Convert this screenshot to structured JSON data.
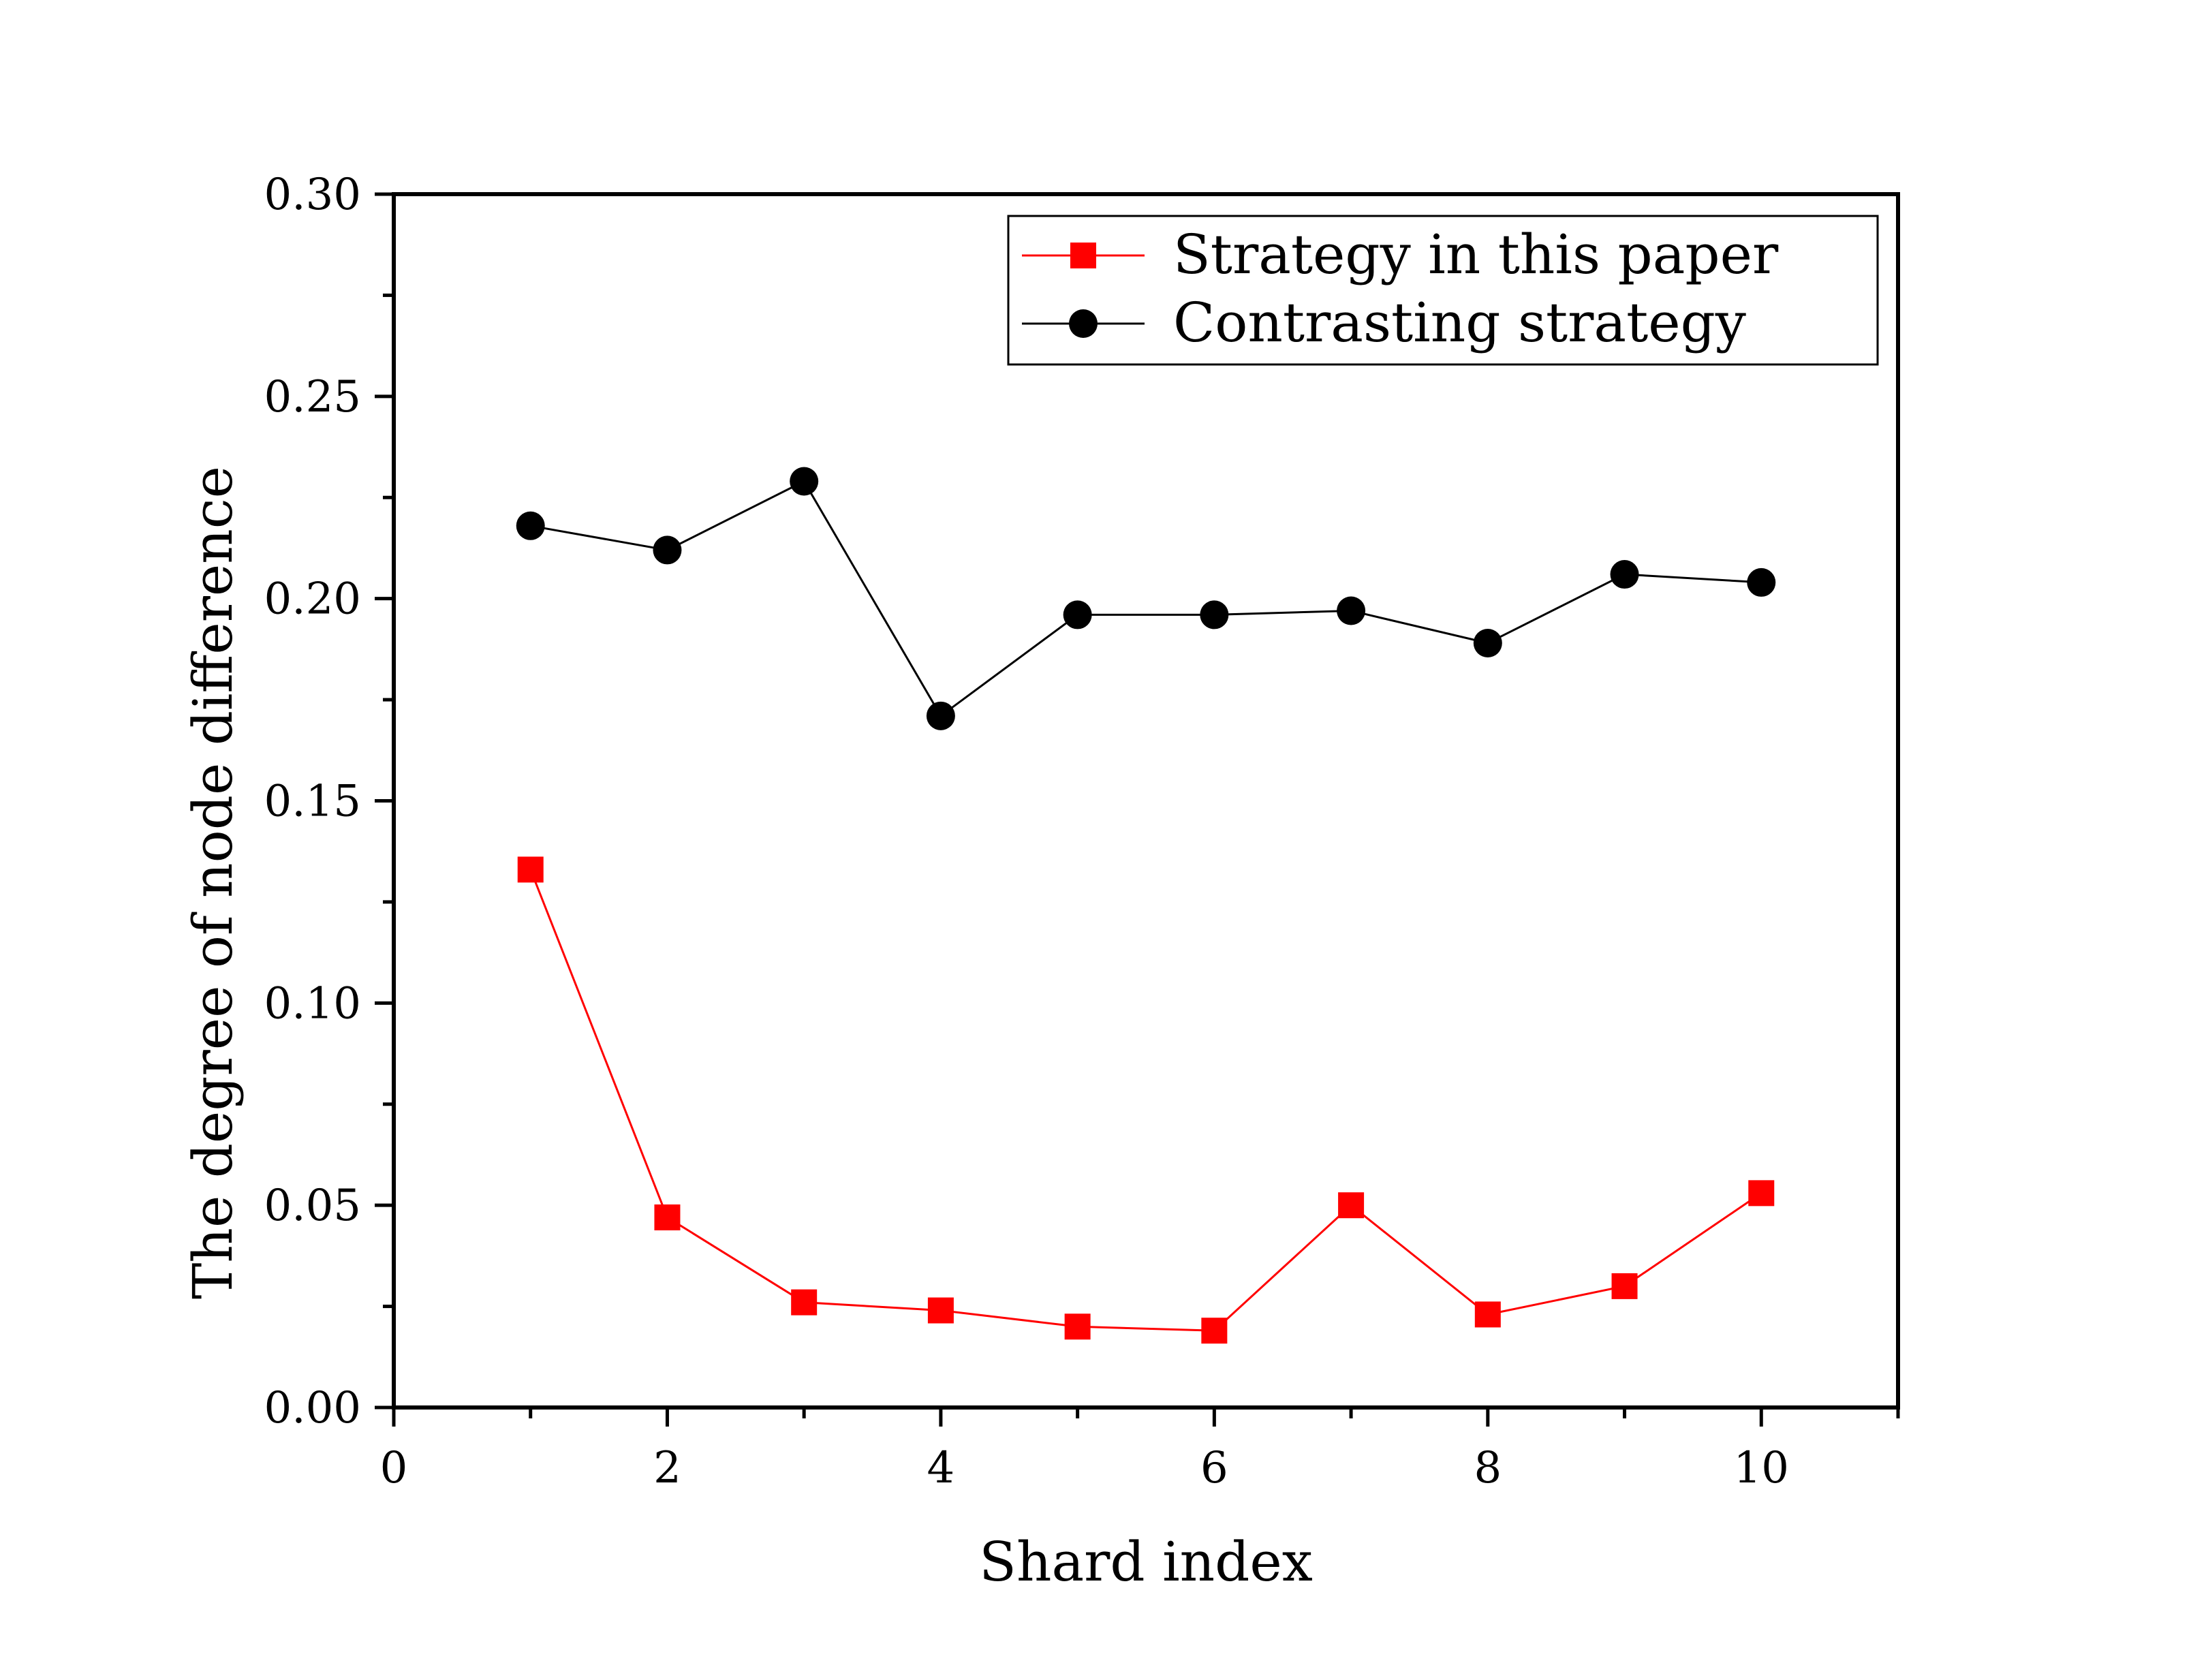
{
  "chart_data": {
    "type": "line",
    "title": "",
    "xlabel": "Shard index",
    "ylabel": "The degree of node difference",
    "xlim": [
      0,
      11
    ],
    "ylim": [
      0.0,
      0.3
    ],
    "xticks": [
      0,
      2,
      4,
      6,
      8,
      10
    ],
    "xtick_labels": [
      "0",
      "2",
      "4",
      "6",
      "8",
      "10"
    ],
    "yticks": [
      0.0,
      0.05,
      0.1,
      0.15,
      0.2,
      0.25,
      0.3
    ],
    "ytick_labels": [
      "0.00",
      "0.05",
      "0.10",
      "0.15",
      "0.20",
      "0.25",
      "0.30"
    ],
    "grid": false,
    "legend_position": "top-right",
    "x": [
      1,
      2,
      3,
      4,
      5,
      6,
      7,
      8,
      9,
      10
    ],
    "series": [
      {
        "name": "Strategy in this paper",
        "color": "#ff0000",
        "marker": "square",
        "values": [
          0.133,
          0.047,
          0.026,
          0.024,
          0.02,
          0.019,
          0.05,
          0.023,
          0.03,
          0.053
        ]
      },
      {
        "name": "Contrasting strategy",
        "color": "#000000",
        "marker": "circle",
        "values": [
          0.218,
          0.212,
          0.229,
          0.171,
          0.196,
          0.196,
          0.197,
          0.189,
          0.206,
          0.204
        ]
      }
    ]
  }
}
